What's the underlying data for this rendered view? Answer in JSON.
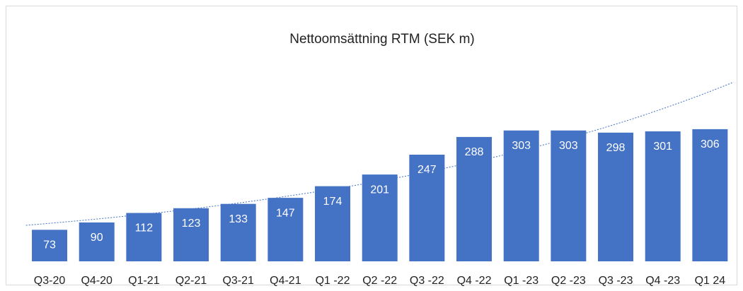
{
  "chart_data": {
    "type": "bar",
    "title": "Nettoomsättning RTM (SEK m)",
    "categories": [
      "Q3-20",
      "Q4-20",
      "Q1-21",
      "Q2-21",
      "Q3-21",
      "Q4-21",
      "Q1 -22",
      "Q2 -22",
      "Q3 -22",
      "Q4 -22",
      "Q1 -23",
      "Q2 -23",
      "Q3 -23",
      "Q4 -23",
      "Q1 24"
    ],
    "values": [
      73,
      90,
      112,
      123,
      133,
      147,
      174,
      201,
      247,
      288,
      303,
      303,
      298,
      301,
      306
    ],
    "color": "#4472c4",
    "ylim": [
      0,
      350
    ],
    "trendline": "exponential"
  }
}
